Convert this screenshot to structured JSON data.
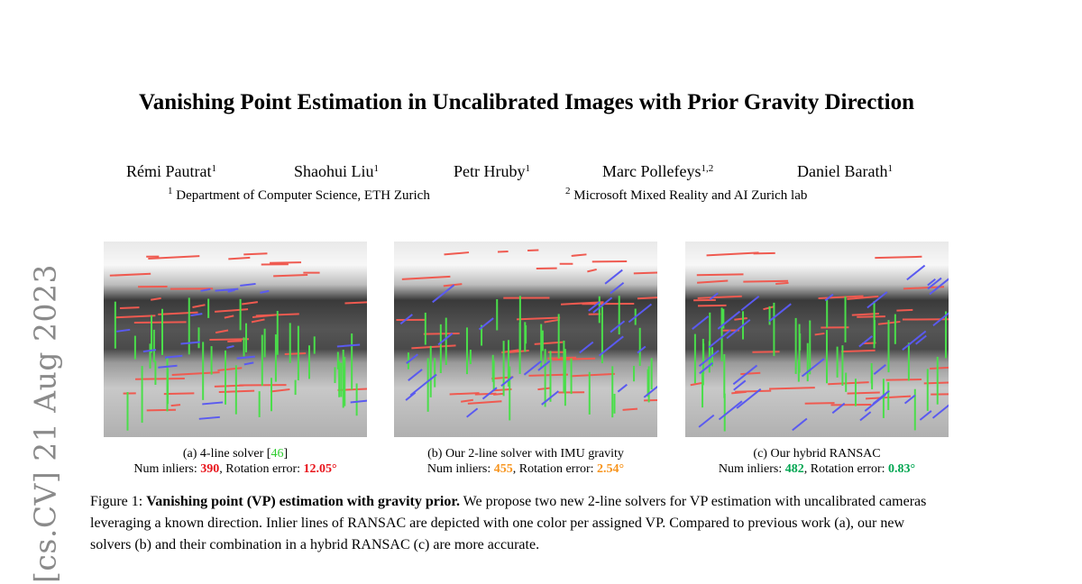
{
  "arxiv_stamp": "[cs.CV]  21 Aug 2023",
  "title": "Vanishing Point Estimation in Uncalibrated Images with Prior Gravity Direction",
  "authors": [
    {
      "name": "Rémi Pautrat",
      "aff": "1"
    },
    {
      "name": "Shaohui Liu",
      "aff": "1"
    },
    {
      "name": "Petr Hruby",
      "aff": "1"
    },
    {
      "name": "Marc Pollefeys",
      "aff": "1,2"
    },
    {
      "name": "Daniel Barath",
      "aff": "1"
    }
  ],
  "affiliations": [
    {
      "num": "1",
      "text": "Department of Computer Science, ETH Zurich"
    },
    {
      "num": "2",
      "text": "Microsoft Mixed Reality and AI Zurich lab"
    }
  ],
  "colors": {
    "vp_lines": [
      "#ef5a50",
      "#4ade4a",
      "#5a5af0"
    ],
    "bad": "#e8141b",
    "mid": "#f7941d",
    "good": "#00a651"
  },
  "subfigures": [
    {
      "label": "(a) 4-line solver [",
      "cite": "46",
      "label_end": "]",
      "inliers_label": "Num inliers: ",
      "inliers": "390",
      "rot_label": ", Rotation error: ",
      "rot_error": "12.05°"
    },
    {
      "label": "(b) Our 2-line solver with IMU gravity",
      "cite": "",
      "label_end": "",
      "inliers_label": "Num inliers: ",
      "inliers": "455",
      "rot_label": ", Rotation error: ",
      "rot_error": "2.54°"
    },
    {
      "label": "(c) Our hybrid RANSAC",
      "cite": "",
      "label_end": "",
      "inliers_label": "Num inliers: ",
      "inliers": "482",
      "rot_label": ", Rotation error: ",
      "rot_error": "0.83°"
    }
  ],
  "figure_caption": {
    "prefix": "Figure 1: ",
    "bold": "Vanishing point (VP) estimation with gravity prior.",
    "text": " We propose two new 2-line solvers for VP estimation with uncalibrated cameras leveraging a known direction.  Inlier lines of RANSAC are depicted with one color per assigned VP. Compared to previous work (a), our new solvers (b) and their combination in a hybrid RANSAC (c) are more accurate."
  }
}
